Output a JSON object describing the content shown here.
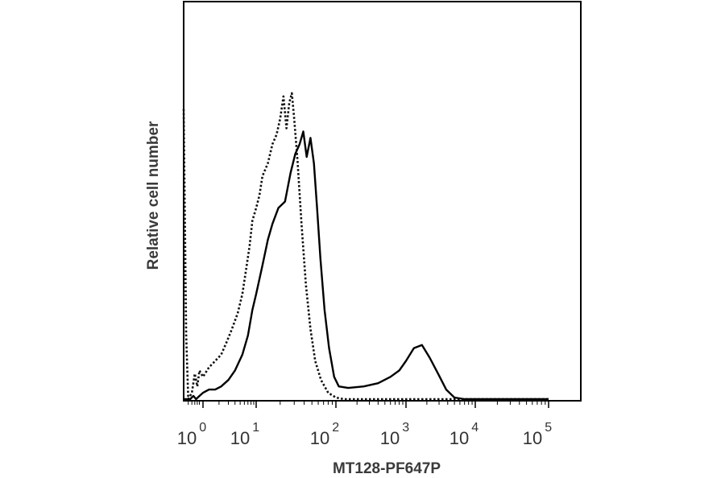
{
  "chart_data": {
    "type": "line",
    "title": "",
    "xlabel": "MT128-PF647P",
    "ylabel": "Relative cell number",
    "x_scale": "logicle",
    "xlim": [
      0.3,
      100000
    ],
    "ylim": [
      0,
      1
    ],
    "y_ticks": false,
    "grid": false,
    "legend": "none",
    "x_ticks": [
      {
        "base": "10",
        "exp": "0",
        "value": 1
      },
      {
        "base": "10",
        "exp": "1",
        "value": 10
      },
      {
        "base": "10",
        "exp": "2",
        "value": 100
      },
      {
        "base": "10",
        "exp": "3",
        "value": 1000
      },
      {
        "base": "10",
        "exp": "4",
        "value": 10000
      },
      {
        "base": "10",
        "exp": "5",
        "value": 100000
      }
    ],
    "series": [
      {
        "style": "dotted",
        "color": "#111111",
        "points": [
          [
            0.3,
            0.91
          ],
          [
            0.35,
            0.2
          ],
          [
            0.4,
            0.0
          ],
          [
            0.5,
            0.02
          ],
          [
            0.6,
            0.08
          ],
          [
            0.7,
            0.04
          ],
          [
            0.8,
            0.09
          ],
          [
            1.0,
            0.07
          ],
          [
            1.3,
            0.1
          ],
          [
            1.7,
            0.12
          ],
          [
            2.2,
            0.14
          ],
          [
            2.8,
            0.18
          ],
          [
            3.5,
            0.22
          ],
          [
            4.5,
            0.27
          ],
          [
            5.5,
            0.33
          ],
          [
            6.5,
            0.41
          ],
          [
            7.5,
            0.48
          ],
          [
            8.5,
            0.56
          ],
          [
            10,
            0.6
          ],
          [
            11,
            0.64
          ],
          [
            12,
            0.7
          ],
          [
            14,
            0.74
          ],
          [
            16,
            0.8
          ],
          [
            18,
            0.83
          ],
          [
            20,
            0.88
          ],
          [
            22,
            0.95
          ],
          [
            24,
            0.85
          ],
          [
            26,
            0.93
          ],
          [
            28,
            0.96
          ],
          [
            30,
            0.88
          ],
          [
            33,
            0.75
          ],
          [
            37,
            0.55
          ],
          [
            42,
            0.36
          ],
          [
            48,
            0.22
          ],
          [
            55,
            0.12
          ],
          [
            65,
            0.06
          ],
          [
            80,
            0.02
          ],
          [
            100,
            0.005
          ],
          [
            130,
            0.0
          ],
          [
            100000,
            0.0
          ]
        ]
      },
      {
        "style": "solid",
        "color": "#000000",
        "points": [
          [
            0.3,
            0.0
          ],
          [
            0.45,
            0.0
          ],
          [
            0.55,
            0.01
          ],
          [
            0.65,
            0.0
          ],
          [
            0.8,
            0.01
          ],
          [
            1.0,
            0.02
          ],
          [
            1.3,
            0.03
          ],
          [
            1.7,
            0.03
          ],
          [
            2.2,
            0.04
          ],
          [
            3.0,
            0.06
          ],
          [
            4.0,
            0.09
          ],
          [
            5.5,
            0.14
          ],
          [
            7.0,
            0.2
          ],
          [
            8.5,
            0.28
          ],
          [
            10,
            0.33
          ],
          [
            12,
            0.42
          ],
          [
            14,
            0.5
          ],
          [
            16,
            0.55
          ],
          [
            19,
            0.6
          ],
          [
            23,
            0.62
          ],
          [
            27,
            0.71
          ],
          [
            31,
            0.77
          ],
          [
            35,
            0.8
          ],
          [
            39,
            0.84
          ],
          [
            43,
            0.76
          ],
          [
            48,
            0.82
          ],
          [
            53,
            0.74
          ],
          [
            58,
            0.6
          ],
          [
            64,
            0.44
          ],
          [
            72,
            0.28
          ],
          [
            82,
            0.16
          ],
          [
            95,
            0.07
          ],
          [
            110,
            0.04
          ],
          [
            150,
            0.035
          ],
          [
            250,
            0.04
          ],
          [
            400,
            0.05
          ],
          [
            600,
            0.07
          ],
          [
            800,
            0.09
          ],
          [
            1000,
            0.12
          ],
          [
            1300,
            0.16
          ],
          [
            1700,
            0.17
          ],
          [
            2200,
            0.13
          ],
          [
            2900,
            0.08
          ],
          [
            3800,
            0.03
          ],
          [
            5000,
            0.005
          ],
          [
            7000,
            0.0
          ],
          [
            100000,
            0.0
          ]
        ]
      }
    ]
  }
}
